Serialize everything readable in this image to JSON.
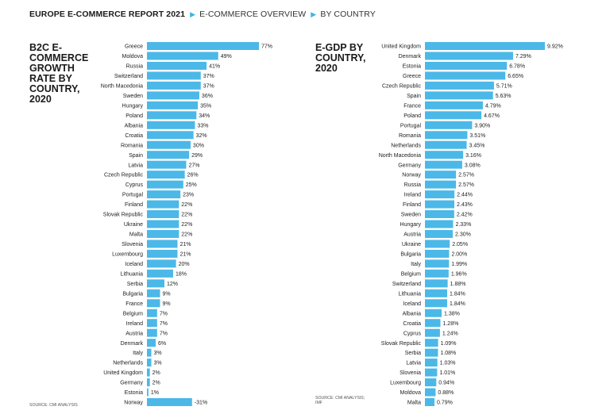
{
  "header": {
    "report_title": "EUROPE E-COMMERCE REPORT 2021",
    "crumb1": "E-COMMERCE OVERVIEW",
    "crumb2": "BY COUNTRY",
    "accent_color": "#3fb4e5"
  },
  "chart_data": [
    {
      "type": "bar",
      "orientation": "horizontal",
      "title": "B2C E-COMMERCE GROWTH RATE BY COUNTRY, 2020",
      "source": "SOURCE: CMI ANALYSIS",
      "value_suffix": "%",
      "categories": [
        "Greece",
        "Moldova",
        "Russia",
        "Switzerland",
        "North Macedonia",
        "Sweden",
        "Hungary",
        "Poland",
        "Albania",
        "Croatia",
        "Romania",
        "Spain",
        "Latvia",
        "Czech Republic",
        "Cyprus",
        "Portugal",
        "Finland",
        "Slovak Republic",
        "Ukraine",
        "Malta",
        "Slovenia",
        "Luxembourg",
        "Iceland",
        "Lithuania",
        "Serbia",
        "Bulgaria",
        "France",
        "Belgium",
        "Ireland",
        "Austria",
        "Denmark",
        "Italy",
        "Netherlands",
        "United Kingdom",
        "Germany",
        "Estonia",
        "Norway"
      ],
      "values": [
        77,
        49,
        41,
        37,
        37,
        36,
        35,
        34,
        33,
        32,
        30,
        29,
        27,
        26,
        25,
        23,
        22,
        22,
        22,
        22,
        21,
        21,
        20,
        18,
        12,
        9,
        9,
        7,
        7,
        7,
        6,
        3,
        3,
        2,
        2,
        1,
        -31
      ],
      "bar_color": "#4bb8e8"
    },
    {
      "type": "bar",
      "orientation": "horizontal",
      "title": "E-GDP BY COUNTRY, 2020",
      "source": "SOURCE: CMI ANALYSIS; IMF",
      "value_suffix": "%",
      "categories": [
        "United Kingdom",
        "Denmark",
        "Estonia",
        "Greece",
        "Czech Republic",
        "Spain",
        "France",
        "Poland",
        "Portugal",
        "Romania",
        "Netherlands",
        "North Macedonia",
        "Germany",
        "Norway",
        "Russia",
        "Ireland",
        "Finland",
        "Sweden",
        "Hungary",
        "Austria",
        "Ukraine",
        "Bulgaria",
        "Italy",
        "Belgium",
        "Switzerland",
        "Lithuania",
        "Iceland",
        "Albania",
        "Croatia",
        "Cyprus",
        "Slovak Republic",
        "Serbia",
        "Latvia",
        "Slovenia",
        "Luxembourg",
        "Moldova",
        "Malta"
      ],
      "values": [
        9.92,
        7.29,
        6.78,
        6.65,
        5.71,
        5.63,
        4.79,
        4.67,
        3.9,
        3.51,
        3.45,
        3.16,
        3.08,
        2.57,
        2.57,
        2.44,
        2.43,
        2.42,
        2.33,
        2.3,
        2.05,
        2.0,
        1.99,
        1.96,
        1.88,
        1.84,
        1.84,
        1.38,
        1.28,
        1.24,
        1.09,
        1.08,
        1.03,
        1.01,
        0.94,
        0.88,
        0.79
      ],
      "value_labels": [
        "9.92%",
        "7.29%",
        "6.78%",
        "6.65%",
        "5.71%",
        "5.63%",
        "4.79%",
        "4.67%",
        "3.90%",
        "3.51%",
        "3.45%",
        "3.16%",
        "3.08%",
        "2.57%",
        "2.57%",
        "2.44%",
        "2.43%",
        "2.42%",
        "2.33%",
        "2.30%",
        "2.05%",
        "2.00%",
        "1.99%",
        "1.96%",
        "1.88%",
        "1.84%",
        "1.84%",
        "1.38%",
        "1.28%",
        "1.24%",
        "1.09%",
        "1.08%",
        "1.03%",
        "1.01%",
        "0.94%",
        "0.88%",
        "0.79%"
      ],
      "bar_color": "#4bb8e8"
    }
  ]
}
